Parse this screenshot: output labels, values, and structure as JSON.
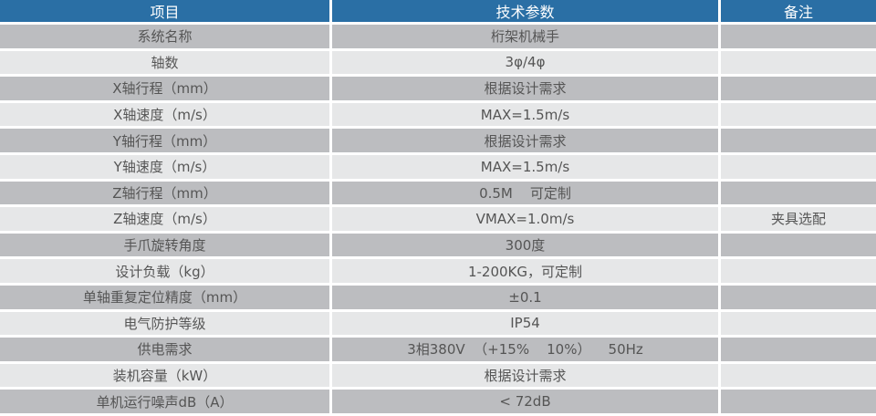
{
  "header": {
    "item": "项目",
    "spec": "技术参数",
    "note": "备注"
  },
  "colors": {
    "header": "#2a6fa5",
    "row_dark": "#bcbdc0",
    "row_light": "#e6e7e8",
    "text": "#555555"
  },
  "rows": [
    {
      "item": "系统名称",
      "spec": "桁架机械手",
      "note": ""
    },
    {
      "item": "轴数",
      "spec": "3φ/4φ",
      "note": ""
    },
    {
      "item": "X轴行程（mm）",
      "spec": "根据设计需求",
      "note": ""
    },
    {
      "item": "X轴速度（m/s）",
      "spec": "MAX=1.5m/s",
      "note": ""
    },
    {
      "item": "Y轴行程（mm）",
      "spec": "根据设计需求",
      "note": ""
    },
    {
      "item": "Y轴速度（m/s）",
      "spec": "MAX=1.5m/s",
      "note": ""
    },
    {
      "item": "Z轴行程（mm）",
      "spec": "0.5M    可定制",
      "note": ""
    },
    {
      "item": "Z轴速度（m/s）",
      "spec": "VMAX=1.0m/s",
      "note": "夹具选配"
    },
    {
      "item": "手爪旋转角度",
      "spec": "300度",
      "note": ""
    },
    {
      "item": "设计负载（kg）",
      "spec": "1-200KG，可定制",
      "note": ""
    },
    {
      "item": "单轴重复定位精度（mm）",
      "spec": "±0.1",
      "note": ""
    },
    {
      "item": "电气防护等级",
      "spec": "IP54",
      "note": ""
    },
    {
      "item": "供电需求",
      "spec": "3相380V  （+15%    10%）    50Hz",
      "note": ""
    },
    {
      "item": "装机容量（kW）",
      "spec": "根据设计需求",
      "note": ""
    },
    {
      "item": "单机运行噪声dB（A）",
      "spec": "< 72dB",
      "note": ""
    }
  ]
}
